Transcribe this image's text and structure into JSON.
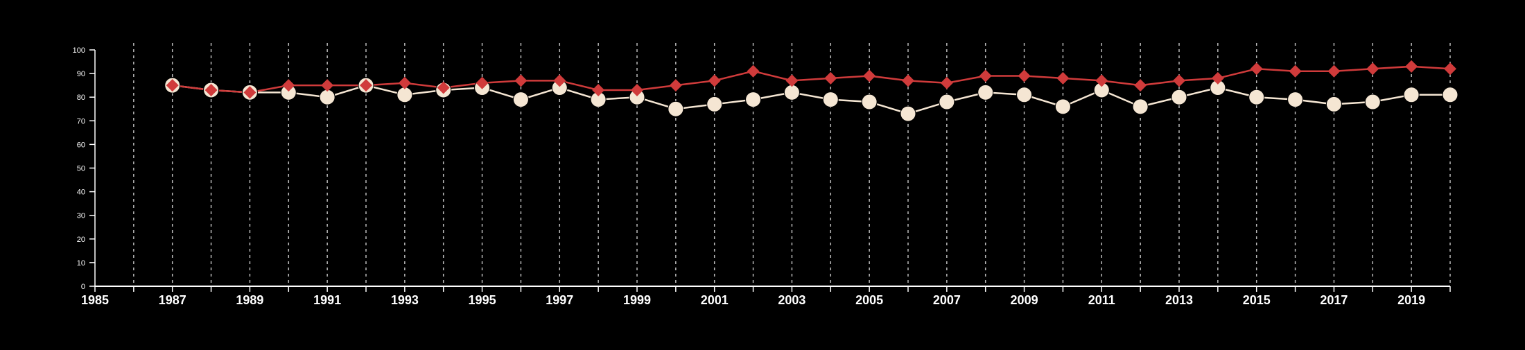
{
  "chart_data": {
    "type": "line",
    "title": "",
    "xlabel": "",
    "ylabel": "",
    "xlim": [
      1985,
      2020
    ],
    "ylim": [
      0,
      100
    ],
    "x_ticks": [
      "1985",
      "1987",
      "1989",
      "1991",
      "1993",
      "1995",
      "1997",
      "1999",
      "2001",
      "2003",
      "2005",
      "2007",
      "2009",
      "2011",
      "2013",
      "2015",
      "2017",
      "2019"
    ],
    "y_ticks": [
      "0",
      "10",
      "20",
      "30",
      "40",
      "50",
      "60",
      "70",
      "80",
      "90",
      "100"
    ],
    "vertical_grid": "dashed, every year",
    "legend": "none",
    "background": "#000000",
    "x": [
      1987,
      1988,
      1989,
      1990,
      1991,
      1992,
      1993,
      1994,
      1995,
      1996,
      1997,
      1998,
      1999,
      2000,
      2001,
      2002,
      2003,
      2004,
      2005,
      2006,
      2007,
      2008,
      2009,
      2010,
      2011,
      2012,
      2013,
      2014,
      2015,
      2016,
      2017,
      2018,
      2019,
      2020
    ],
    "series": [
      {
        "color": "#f5e6d3",
        "marker": "circle",
        "values": [
          85,
          83,
          82,
          82,
          80,
          85,
          81,
          83,
          84,
          79,
          84,
          79,
          80,
          75,
          77,
          79,
          82,
          79,
          78,
          73,
          78,
          82,
          81,
          76,
          83,
          76,
          80,
          84,
          80,
          79,
          77,
          78,
          81,
          81
        ]
      },
      {
        "color": "#d03b3b",
        "marker": "diamond",
        "values": [
          85,
          83,
          82,
          85,
          85,
          85,
          86,
          84,
          86,
          87,
          87,
          83,
          83,
          85,
          87,
          91,
          87,
          88,
          89,
          87,
          86,
          89,
          89,
          88,
          87,
          85,
          87,
          88,
          92,
          91,
          91,
          92,
          93,
          92
        ]
      }
    ]
  }
}
